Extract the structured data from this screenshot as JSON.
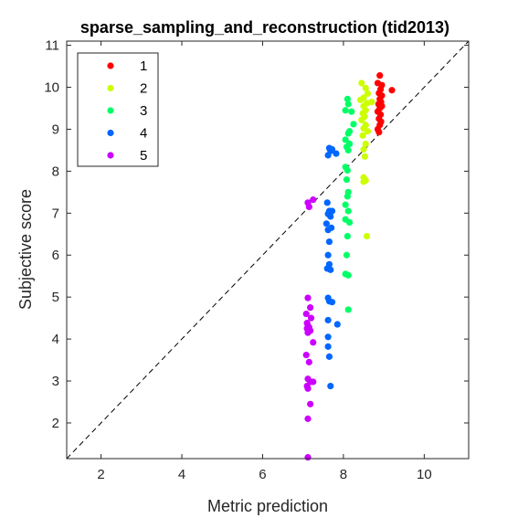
{
  "chart_data": {
    "type": "scatter",
    "title": "sparse_sampling_and_reconstruction (tid2013)",
    "xlabel": "Metric prediction",
    "ylabel": "Subjective score",
    "xlim": [
      1.15,
      11.1
    ],
    "ylim": [
      1.15,
      11.1
    ],
    "xticks": [
      2,
      4,
      6,
      8,
      10
    ],
    "yticks": [
      2,
      3,
      4,
      5,
      6,
      7,
      8,
      9,
      10,
      11
    ],
    "grid": false,
    "legend_position": "top-left",
    "reference_line": "y = x (dashed)",
    "series": [
      {
        "name": "1",
        "color": "#ff0000",
        "points": [
          [
            8.9,
            10.28
          ],
          [
            8.85,
            10.1
          ],
          [
            8.95,
            10.05
          ],
          [
            9.2,
            9.93
          ],
          [
            8.92,
            9.95
          ],
          [
            8.88,
            9.86
          ],
          [
            8.95,
            9.8
          ],
          [
            8.9,
            9.72
          ],
          [
            8.93,
            9.65
          ],
          [
            8.87,
            9.6
          ],
          [
            8.95,
            9.55
          ],
          [
            8.9,
            9.5
          ],
          [
            8.85,
            9.42
          ],
          [
            8.92,
            9.35
          ],
          [
            8.88,
            9.25
          ],
          [
            8.93,
            9.18
          ],
          [
            8.9,
            9.1
          ],
          [
            8.85,
            9.0
          ],
          [
            8.88,
            8.93
          ]
        ]
      },
      {
        "name": "2",
        "color": "#ccff00",
        "points": [
          [
            8.45,
            10.1
          ],
          [
            8.55,
            9.98
          ],
          [
            8.6,
            9.85
          ],
          [
            8.5,
            9.75
          ],
          [
            8.42,
            9.7
          ],
          [
            8.58,
            9.62
          ],
          [
            8.7,
            9.65
          ],
          [
            8.5,
            9.55
          ],
          [
            8.55,
            9.45
          ],
          [
            8.48,
            9.38
          ],
          [
            8.52,
            9.3
          ],
          [
            8.45,
            9.22
          ],
          [
            8.55,
            9.1
          ],
          [
            8.5,
            9.02
          ],
          [
            8.6,
            8.95
          ],
          [
            8.48,
            8.85
          ],
          [
            8.55,
            8.65
          ],
          [
            8.5,
            8.52
          ],
          [
            8.53,
            8.35
          ],
          [
            8.5,
            7.85
          ],
          [
            8.55,
            7.78
          ],
          [
            8.5,
            7.75
          ],
          [
            8.58,
            6.45
          ]
        ]
      },
      {
        "name": "3",
        "color": "#00ff66",
        "points": [
          [
            8.1,
            9.72
          ],
          [
            8.12,
            9.6
          ],
          [
            8.05,
            9.45
          ],
          [
            8.2,
            9.42
          ],
          [
            8.25,
            9.12
          ],
          [
            8.15,
            8.95
          ],
          [
            8.12,
            8.9
          ],
          [
            8.05,
            8.75
          ],
          [
            8.15,
            8.65
          ],
          [
            8.08,
            8.58
          ],
          [
            8.12,
            8.5
          ],
          [
            8.05,
            8.1
          ],
          [
            8.1,
            8.02
          ],
          [
            8.08,
            7.8
          ],
          [
            8.12,
            7.5
          ],
          [
            8.1,
            7.4
          ],
          [
            8.05,
            7.2
          ],
          [
            8.12,
            7.05
          ],
          [
            8.05,
            6.85
          ],
          [
            8.15,
            6.78
          ],
          [
            8.1,
            6.45
          ],
          [
            8.08,
            6.0
          ],
          [
            8.05,
            5.55
          ],
          [
            8.12,
            5.52
          ],
          [
            8.12,
            4.7
          ]
        ]
      },
      {
        "name": "4",
        "color": "#0066ff",
        "points": [
          [
            7.65,
            8.55
          ],
          [
            7.72,
            8.52
          ],
          [
            7.68,
            8.48
          ],
          [
            7.62,
            8.38
          ],
          [
            7.82,
            8.42
          ],
          [
            7.6,
            7.25
          ],
          [
            7.65,
            7.05
          ],
          [
            7.72,
            7.05
          ],
          [
            7.62,
            6.98
          ],
          [
            7.68,
            6.92
          ],
          [
            7.58,
            6.75
          ],
          [
            7.7,
            6.65
          ],
          [
            7.62,
            6.6
          ],
          [
            7.65,
            6.32
          ],
          [
            7.62,
            6.0
          ],
          [
            7.65,
            5.78
          ],
          [
            7.6,
            5.68
          ],
          [
            7.68,
            5.65
          ],
          [
            7.62,
            4.98
          ],
          [
            7.65,
            4.9
          ],
          [
            7.72,
            4.88
          ],
          [
            7.62,
            4.45
          ],
          [
            7.85,
            4.35
          ],
          [
            7.62,
            4.05
          ],
          [
            7.62,
            3.82
          ],
          [
            7.65,
            3.58
          ],
          [
            7.68,
            2.88
          ]
        ]
      },
      {
        "name": "5",
        "color": "#cc00ff",
        "points": [
          [
            7.25,
            7.32
          ],
          [
            7.12,
            7.25
          ],
          [
            7.15,
            7.15
          ],
          [
            7.12,
            4.98
          ],
          [
            7.18,
            4.75
          ],
          [
            7.08,
            4.6
          ],
          [
            7.2,
            4.5
          ],
          [
            7.1,
            4.38
          ],
          [
            7.12,
            4.32
          ],
          [
            7.15,
            4.28
          ],
          [
            7.1,
            4.25
          ],
          [
            7.18,
            4.2
          ],
          [
            7.12,
            4.15
          ],
          [
            7.25,
            3.92
          ],
          [
            7.08,
            3.62
          ],
          [
            7.15,
            3.45
          ],
          [
            7.12,
            3.05
          ],
          [
            7.18,
            2.98
          ],
          [
            7.25,
            2.98
          ],
          [
            7.1,
            2.88
          ],
          [
            7.12,
            2.82
          ],
          [
            7.18,
            2.45
          ],
          [
            7.12,
            2.1
          ],
          [
            7.12,
            1.18
          ]
        ]
      }
    ]
  }
}
